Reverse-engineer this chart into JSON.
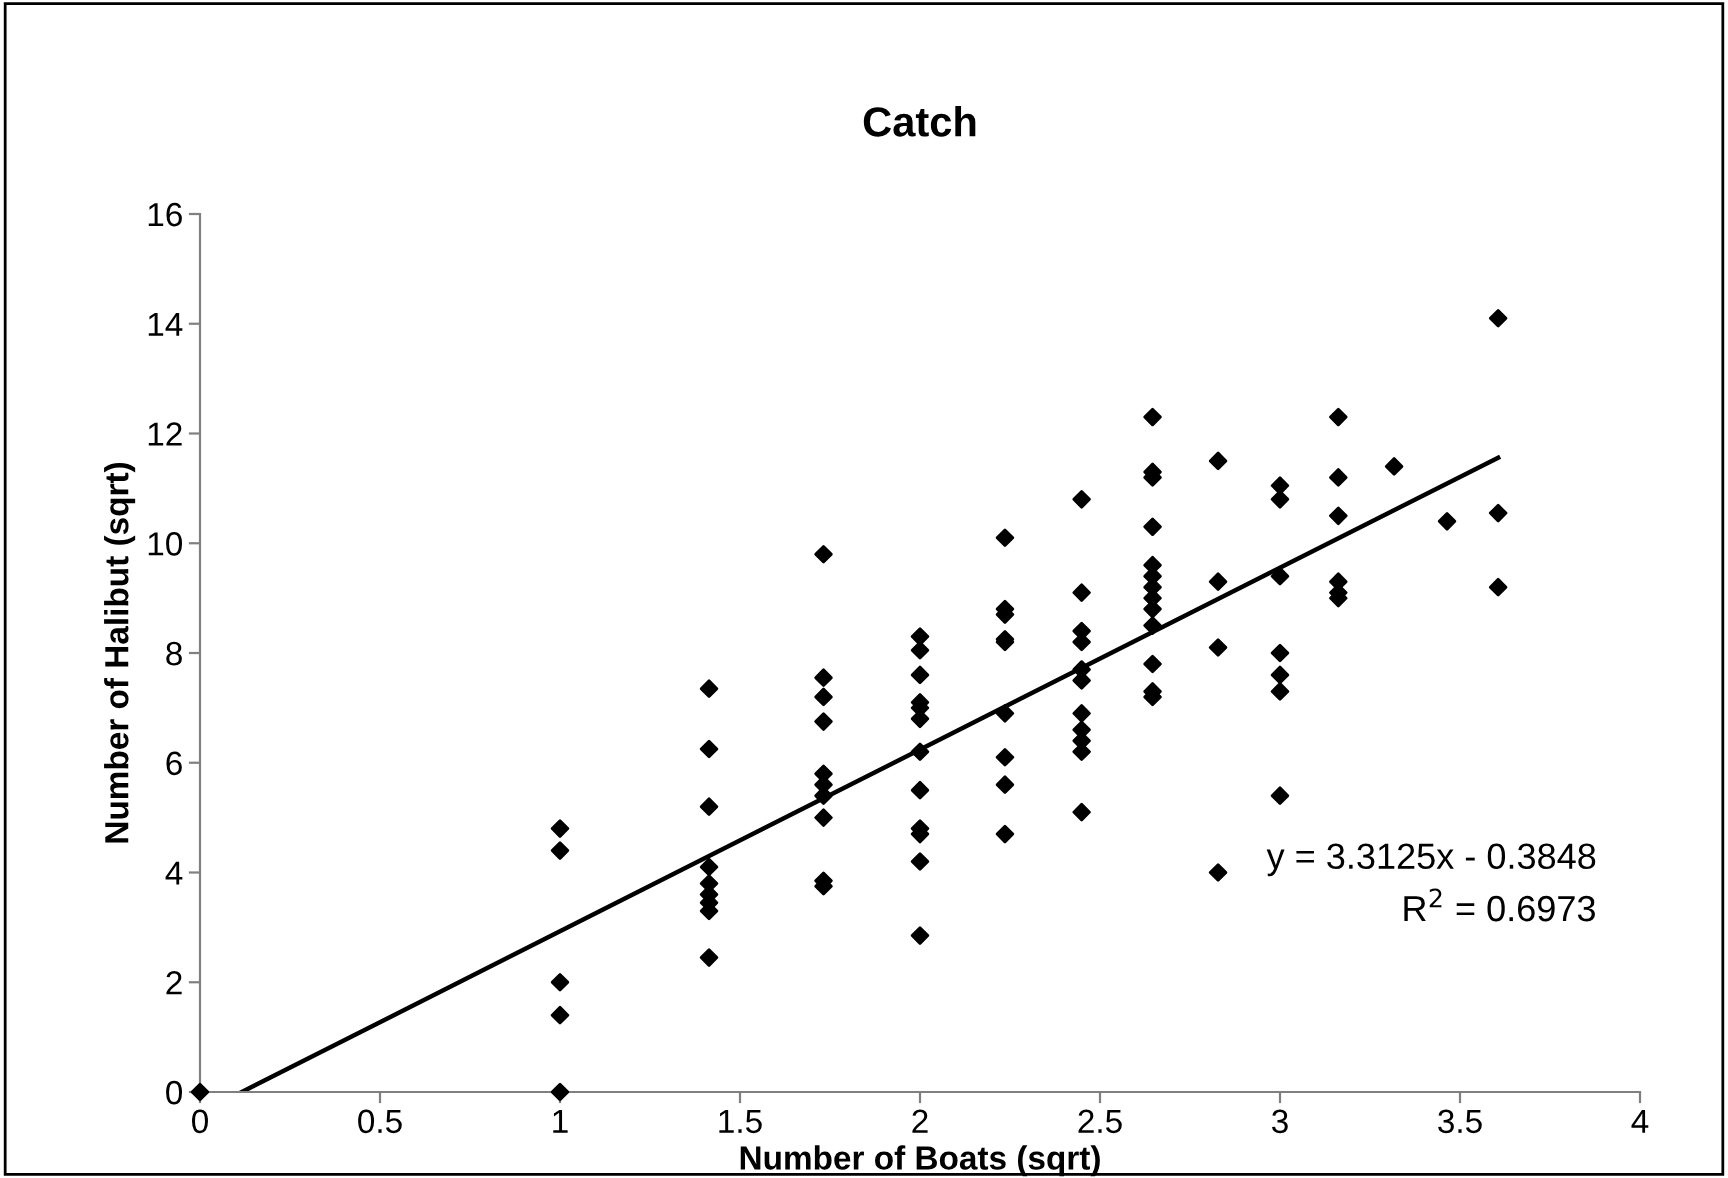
{
  "chart_data": {
    "type": "scatter",
    "title": "Catch",
    "xlabel": "Number of Boats (sqrt)",
    "ylabel": "Number of Halibut (sqrt)",
    "xlim": [
      0,
      4
    ],
    "xticks": [
      0,
      0.5,
      1,
      1.5,
      2,
      2.5,
      3,
      3.5,
      4
    ],
    "ylim": [
      0,
      16
    ],
    "yticks": [
      0,
      2,
      4,
      6,
      8,
      10,
      12,
      14,
      16
    ],
    "grid": false,
    "legend": false,
    "marker": "diamond",
    "annotations": [
      "y = 3.3125x - 0.3848",
      "R$^{2}$ = 0.6973"
    ],
    "series": [
      {
        "color": "#000000",
        "x": [
          0,
          1,
          1,
          1,
          1,
          1,
          1.414,
          1.414,
          1.414,
          1.414,
          1.414,
          1.414,
          1.414,
          1.414,
          1.414,
          1.732,
          1.732,
          1.732,
          1.732,
          1.732,
          1.732,
          1.732,
          1.732,
          1.732,
          1.732,
          2,
          2,
          2,
          2,
          2,
          2,
          2,
          2,
          2,
          2,
          2,
          2,
          2.236,
          2.236,
          2.236,
          2.236,
          2.236,
          2.236,
          2.236,
          2.236,
          2.236,
          2.449,
          2.449,
          2.449,
          2.449,
          2.449,
          2.449,
          2.449,
          2.449,
          2.449,
          2.449,
          2.449,
          2.646,
          2.646,
          2.646,
          2.646,
          2.646,
          2.646,
          2.646,
          2.646,
          2.646,
          2.646,
          2.646,
          2.646,
          2.646,
          2.828,
          2.828,
          2.828,
          2.828,
          3,
          3,
          3,
          3,
          3,
          3,
          3,
          3.162,
          3.162,
          3.162,
          3.162,
          3.162,
          3.162,
          3.317,
          3.464,
          3.606,
          3.606,
          3.606
        ],
        "values": [
          0,
          4.8,
          4.4,
          2.0,
          1.4,
          0,
          7.35,
          6.25,
          5.2,
          4.1,
          3.8,
          3.6,
          3.45,
          3.3,
          2.45,
          9.8,
          7.55,
          7.2,
          6.75,
          5.8,
          5.6,
          5.4,
          5.0,
          3.85,
          3.75,
          8.3,
          8.05,
          7.6,
          7.1,
          7.0,
          6.8,
          6.2,
          5.5,
          4.8,
          4.7,
          4.2,
          2.85,
          10.1,
          8.8,
          8.7,
          8.25,
          8.2,
          6.9,
          6.1,
          5.6,
          4.7,
          10.8,
          9.1,
          8.4,
          8.2,
          7.7,
          7.5,
          6.9,
          6.6,
          6.4,
          6.2,
          5.1,
          12.3,
          11.3,
          11.2,
          10.3,
          9.6,
          9.4,
          9.2,
          9.0,
          8.8,
          8.5,
          7.8,
          7.3,
          7.2,
          11.5,
          9.3,
          8.1,
          4.0,
          11.05,
          10.8,
          9.4,
          8.0,
          7.6,
          7.3,
          5.4,
          12.3,
          11.2,
          10.5,
          9.3,
          9.1,
          9.0,
          11.4,
          10.4,
          14.1,
          10.55,
          9.2
        ]
      },
      {
        "type": "line",
        "color": "#000000",
        "marker": "none",
        "x": [
          0.1162,
          3.606
        ],
        "values": [
          0,
          11.56
        ]
      }
    ]
  }
}
